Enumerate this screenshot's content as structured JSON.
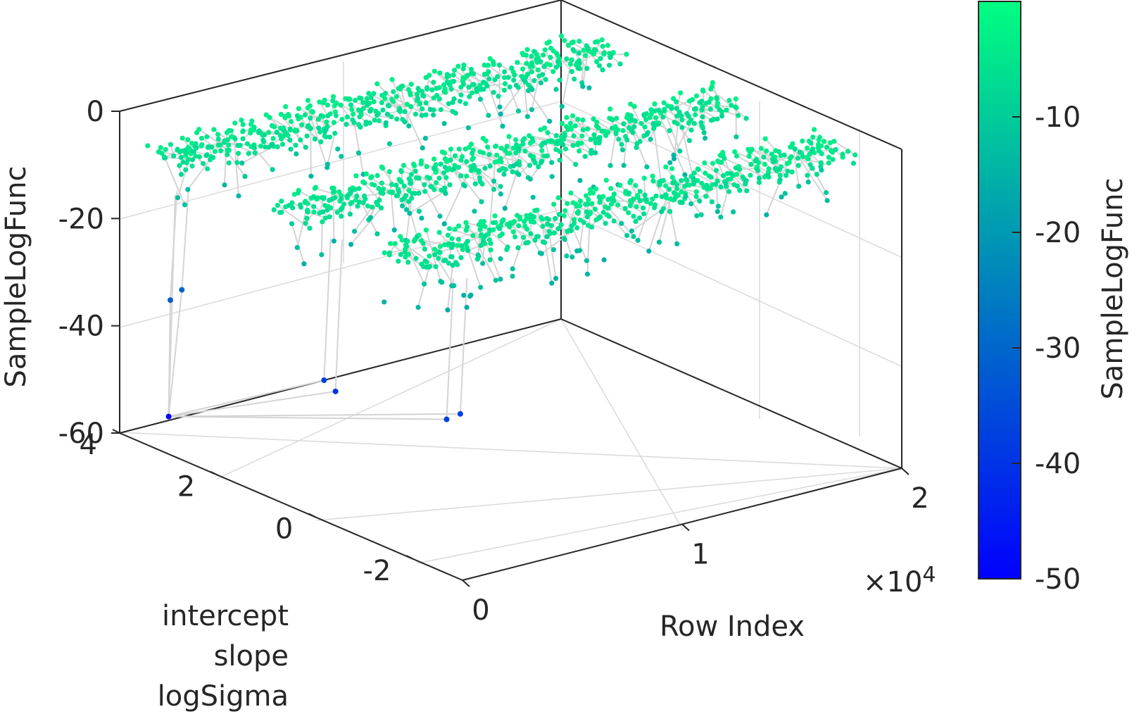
{
  "chart_data": {
    "type": "scatter",
    "subtype": "3d-scatter-with-lines",
    "title": "",
    "xlabel": "Row Index",
    "ylabel_lines": [
      "intercept",
      "slope",
      "logSigma"
    ],
    "zlabel": "SampleLogFunc",
    "x_exponent_label": "×10",
    "x_exponent_power": "4",
    "xlim": [
      0,
      20000
    ],
    "ylim": [
      -3,
      4
    ],
    "zlim": [
      -60,
      0
    ],
    "x_ticks": [
      "0",
      "1",
      "2"
    ],
    "y_ticks": [
      "4",
      "2",
      "0",
      "-2"
    ],
    "z_ticks": [
      "0",
      "-20",
      "-40",
      "-60"
    ],
    "grid": true,
    "point_color_scale": "winter",
    "colorbar": {
      "label": "SampleLogFunc",
      "range": [
        -50,
        0
      ],
      "ticks": [
        "-10",
        "-20",
        "-30",
        "-40",
        "-50"
      ],
      "colors": [
        "#00ff80",
        "#0000ff"
      ]
    },
    "series": [
      {
        "name": "intercept",
        "y_level": 3.0,
        "x_range": [
          0,
          20000
        ],
        "z_mean": -5
      },
      {
        "name": "slope",
        "y_level": 0.5,
        "x_range": [
          0,
          20000
        ],
        "z_mean": -5
      },
      {
        "name": "logSigma",
        "y_level": -1.7,
        "x_range": [
          0,
          20000
        ],
        "z_mean": -5
      }
    ],
    "outlier_points": [
      {
        "x": 0,
        "y": 3.0,
        "z": -53
      },
      {
        "x": 300,
        "y": 3.1,
        "z": -32
      },
      {
        "x": 600,
        "y": 3.0,
        "z": -30
      },
      {
        "x": 1500,
        "y": 0.5,
        "z": -38
      },
      {
        "x": 1800,
        "y": 0.4,
        "z": -40
      },
      {
        "x": 2400,
        "y": -1.6,
        "z": -38
      },
      {
        "x": 2800,
        "y": -1.7,
        "z": -37
      }
    ]
  }
}
